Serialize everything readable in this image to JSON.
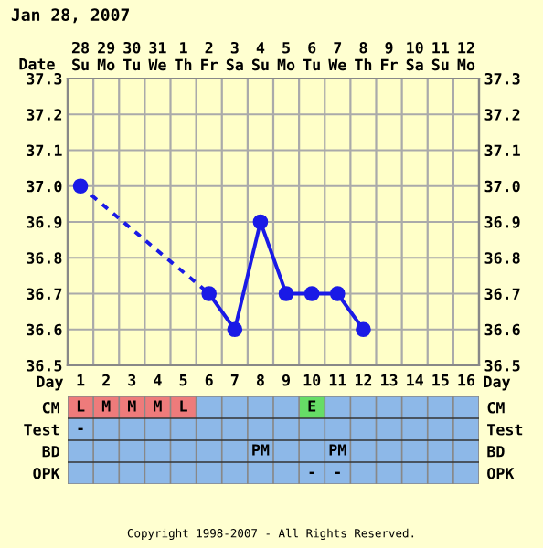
{
  "chart_data": [
    {
      "type": "line",
      "title": "Jan 28, 2007",
      "xlabel": "Date",
      "categories": [
        "28\nSu",
        "29\nMo",
        "30\nTu",
        "31\nWe",
        "1\nTh",
        "2\nFr",
        "3\nSa",
        "4\nSu",
        "5\nMo",
        "6\nTu",
        "7\nWe",
        "8\nTh",
        "9\nFr",
        "10\nSa",
        "11\nSu",
        "12\nMo"
      ],
      "series": [
        {
          "color": "#1a1ae6",
          "line_style": "dashed",
          "marker": "none",
          "values": [
            37.0,
            null,
            null,
            null,
            null,
            36.7,
            null,
            null,
            null,
            null,
            null,
            null,
            null,
            null,
            null,
            null
          ]
        },
        {
          "color": "#1a1ae6",
          "line_style": "solid",
          "marker": "circle",
          "values": [
            37.0,
            null,
            null,
            null,
            null,
            36.7,
            36.6,
            36.9,
            36.7,
            36.7,
            36.7,
            36.6,
            null,
            null,
            null,
            null
          ]
        }
      ],
      "ylim": [
        36.5,
        37.3
      ],
      "yticks": [
        36.5,
        36.6,
        36.7,
        36.8,
        36.9,
        {
          "value": 37.0,
          "label": "37.0"
        },
        37.1,
        37.2,
        37.3
      ],
      "y2lim": [
        36.5,
        37.3
      ],
      "y2ticks": [
        36.5,
        36.6,
        36.7,
        36.8,
        36.9,
        {
          "value": 37.0,
          "label": "37.0"
        },
        37.1,
        37.2,
        37.3
      ],
      "grid": true,
      "legend": false
    },
    {
      "type": "heatmap",
      "xlabel": "Day",
      "color": "#8db8e8",
      "categories": [
        "1",
        "2",
        "3",
        "4",
        "5",
        "6",
        "7",
        "8",
        "9",
        "10",
        "11",
        "12",
        "13",
        "14",
        "15",
        "16"
      ],
      "y_categories": [
        "CM",
        "Test",
        "BD",
        "OPK"
      ],
      "y2_categories": [
        "CM",
        "Test",
        "BD",
        "OPK"
      ],
      "cells": [
        [
          null,
          null,
          null,
          null,
          null,
          null,
          null,
          null,
          null,
          null,
          null,
          null,
          null,
          null,
          null,
          null
        ],
        [
          null,
          null,
          null,
          null,
          null,
          null,
          null,
          null,
          null,
          null,
          null,
          null,
          null,
          null,
          null,
          null
        ],
        [
          null,
          null,
          null,
          null,
          null,
          null,
          null,
          null,
          null,
          null,
          null,
          null,
          null,
          null,
          null,
          null
        ],
        [
          null,
          null,
          null,
          null,
          null,
          null,
          null,
          null,
          null,
          null,
          null,
          null,
          null,
          null,
          null,
          null
        ]
      ],
      "cell_labels": [
        [
          "L",
          "M",
          "M",
          "M",
          "L",
          null,
          null,
          null,
          null,
          "E",
          null,
          null,
          null,
          null,
          null,
          null
        ],
        [
          "-",
          null,
          null,
          null,
          null,
          null,
          null,
          null,
          null,
          null,
          null,
          null,
          null,
          null,
          null,
          null
        ],
        [
          null,
          null,
          null,
          null,
          null,
          null,
          null,
          "PM",
          null,
          null,
          "PM",
          null,
          null,
          null,
          null,
          null
        ],
        [
          null,
          null,
          null,
          null,
          null,
          null,
          null,
          null,
          null,
          "-",
          "-",
          null,
          null,
          null,
          null,
          null
        ]
      ],
      "colors": [
        [
          "#ee7b7b",
          "#ee7b7b",
          "#ee7b7b",
          "#ee7b7b",
          "#ee7b7b",
          null,
          null,
          null,
          null,
          "#66dd66",
          null,
          null,
          null,
          null,
          null,
          null
        ],
        [
          null,
          null,
          null,
          null,
          null,
          null,
          null,
          null,
          null,
          null,
          null,
          null,
          null,
          null,
          null,
          null
        ],
        [
          null,
          null,
          null,
          null,
          null,
          null,
          null,
          null,
          null,
          null,
          null,
          null,
          null,
          null,
          null,
          null
        ],
        [
          null,
          null,
          null,
          null,
          null,
          null,
          null,
          null,
          null,
          null,
          null,
          null,
          null,
          null,
          null,
          null
        ]
      ],
      "annotations": [
        "Copyright 1998-2007 - All Rights Reserved."
      ]
    }
  ]
}
